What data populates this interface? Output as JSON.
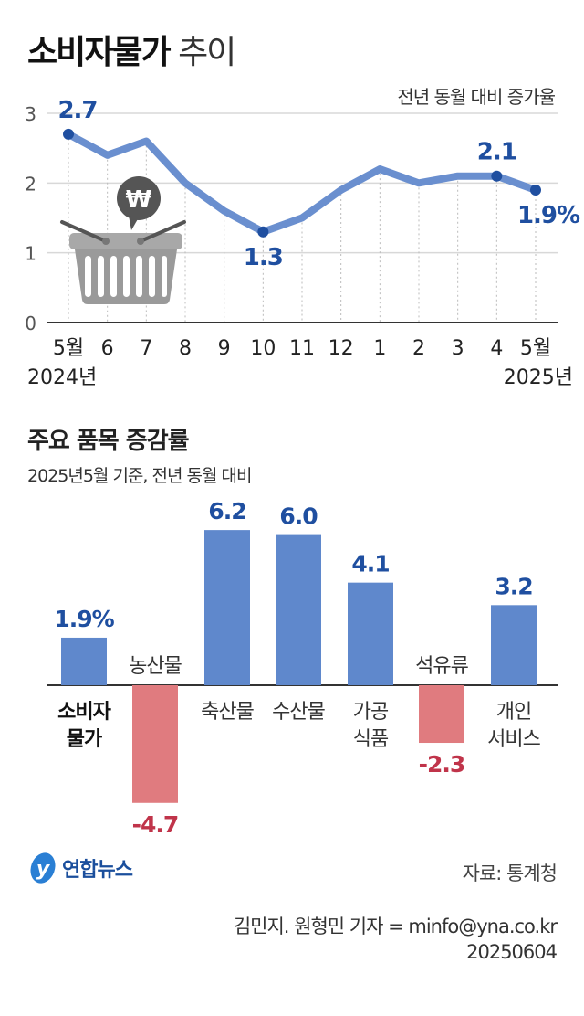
{
  "header": {
    "title_bold": "소비자물가",
    "title_light": "추이"
  },
  "colors": {
    "line": "#6a8fcf",
    "marker": "#1f4fa0",
    "label": "#1f4fa0",
    "positive_bar": "#5f88cc",
    "negative_bar": "#e07b7f",
    "negative_label": "#c0344a",
    "grid": "#d8d8d8",
    "basket": "#9a9a9a"
  },
  "chart_data": [
    {
      "type": "line",
      "unit_label": "전년 동월 대비 증가율",
      "categories": [
        "5월",
        "6",
        "7",
        "8",
        "9",
        "10",
        "11",
        "12",
        "1",
        "2",
        "3",
        "4",
        "5월"
      ],
      "year_labels": {
        "start": "2024년",
        "end": "2025년"
      },
      "values": [
        2.7,
        2.4,
        2.6,
        2.0,
        1.6,
        1.3,
        1.5,
        1.9,
        2.2,
        2.0,
        2.1,
        2.1,
        1.9
      ],
      "yticks": [
        "0",
        "1",
        "2",
        "3"
      ],
      "ylim": [
        0,
        3
      ],
      "grid": true,
      "data_labels": [
        {
          "index": 0,
          "text": "2.7"
        },
        {
          "index": 5,
          "text": "1.3"
        },
        {
          "index": 11,
          "text": "2.1"
        },
        {
          "index": 12,
          "text": "1.9%"
        }
      ],
      "icon": "shopping-basket-won-icon"
    },
    {
      "type": "bar",
      "title": "주요 품목 증감률",
      "subtitle": "2025년5월 기준, 전년 동월 대비",
      "categories": [
        [
          "소비자",
          "물가"
        ],
        [
          "농산물"
        ],
        [
          "축산물"
        ],
        [
          "수산물"
        ],
        [
          "가공",
          "식품"
        ],
        [
          "석유류"
        ],
        [
          "개인",
          "서비스"
        ]
      ],
      "values": [
        1.9,
        -4.7,
        6.2,
        6.0,
        4.1,
        -2.3,
        3.2
      ],
      "data_labels": [
        "1.9%",
        "-4.7",
        "6.2",
        "6.0",
        "4.1",
        "-2.3",
        "3.2"
      ]
    }
  ],
  "footer": {
    "logo_text": "연합뉴스",
    "source": "자료: 통계청",
    "credit": "김민지. 원형민 기자 = minfo@yna.co.kr",
    "date": "20250604"
  }
}
